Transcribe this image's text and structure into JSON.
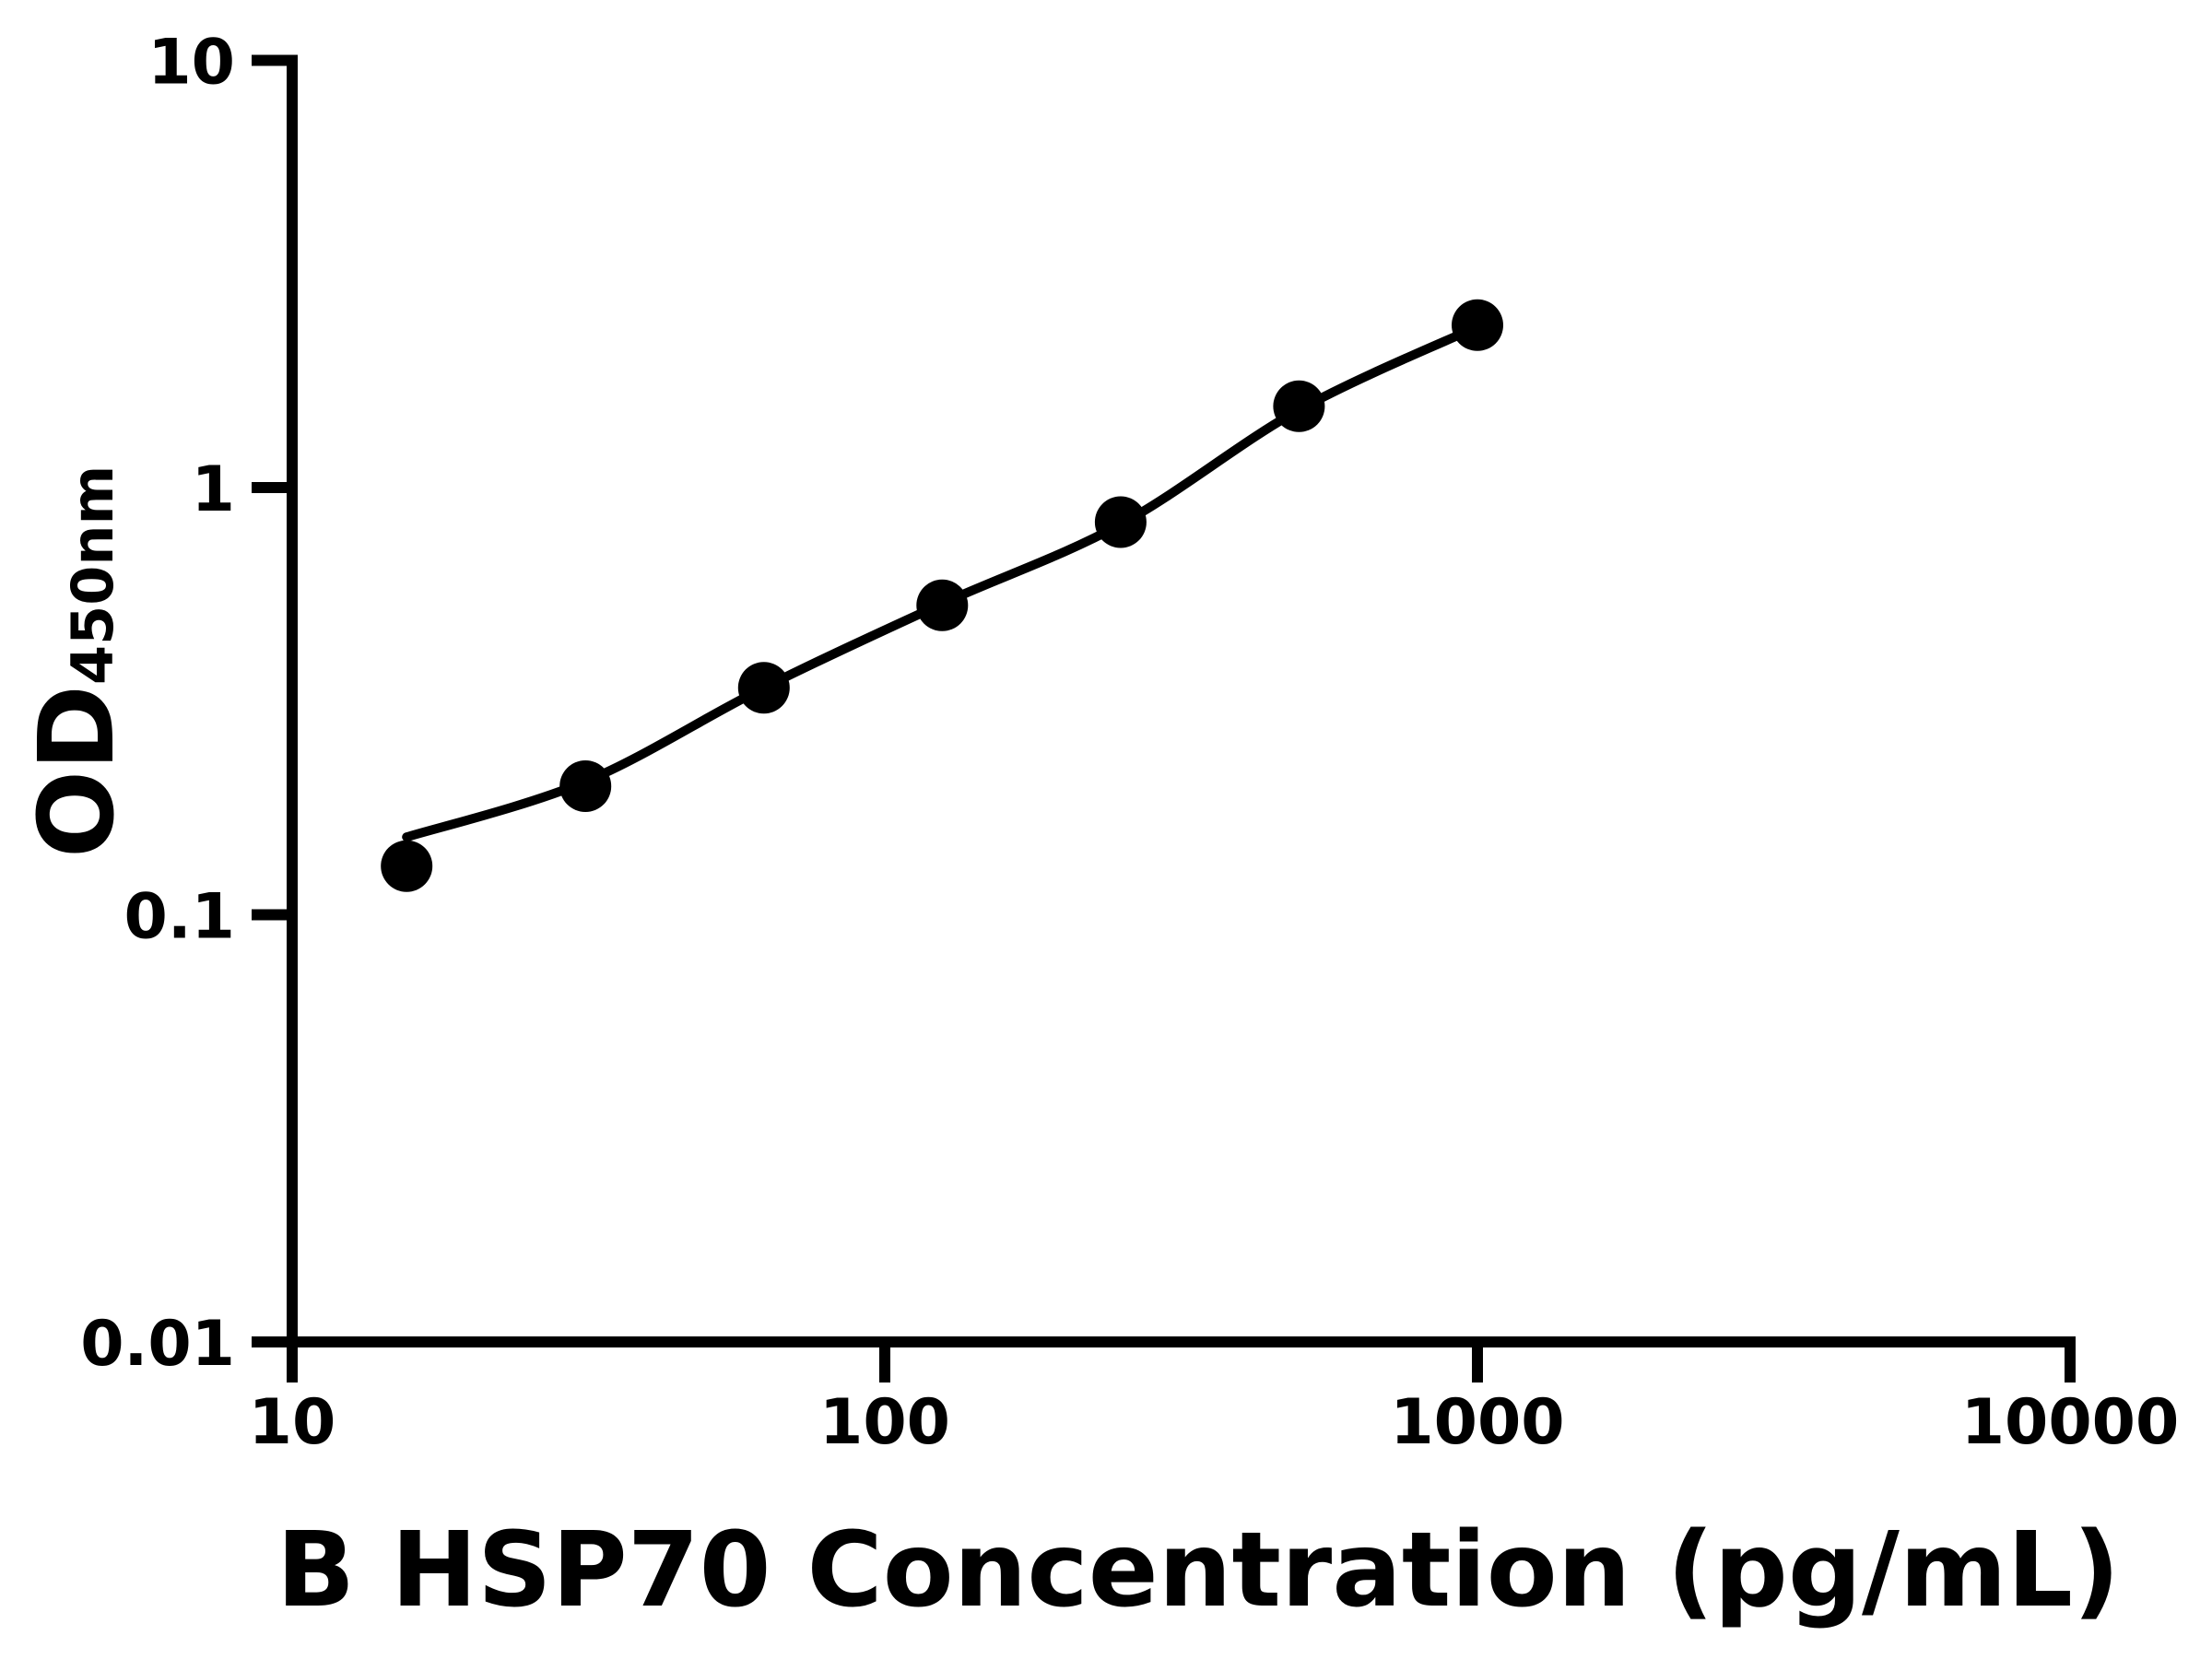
{
  "chart_data": {
    "type": "scatter",
    "title": "",
    "xlabel": "B HSP70 Concentration (pg/mL)",
    "ylabel": "OD450nm",
    "ylabel_parts": {
      "main": "OD",
      "subscript": "450nm"
    },
    "x_scale": "log",
    "y_scale": "log",
    "xlim": [
      10,
      10000
    ],
    "ylim": [
      0.01,
      10
    ],
    "x_ticks": [
      10,
      100,
      1000,
      10000
    ],
    "x_tick_labels": [
      "10",
      "100",
      "1000",
      "10000"
    ],
    "y_ticks": [
      0.01,
      0.1,
      1,
      10
    ],
    "y_tick_labels": [
      "0.01",
      "0.1",
      "1",
      "10"
    ],
    "grid": "off",
    "legend": "none",
    "series": [
      {
        "name": "standard-curve-points",
        "type": "scatter",
        "x": [
          15.6,
          31.25,
          62.5,
          125,
          250,
          500,
          1000
        ],
        "y": [
          0.13,
          0.2,
          0.34,
          0.53,
          0.83,
          1.55,
          2.4
        ]
      },
      {
        "name": "fitted-curve",
        "type": "line",
        "x": [
          15.6,
          31.25,
          62.5,
          125,
          250,
          500,
          1000
        ],
        "y": [
          0.152,
          0.205,
          0.34,
          0.535,
          0.82,
          1.52,
          2.38
        ]
      }
    ],
    "colors": {
      "marker": "#000000",
      "line": "#000000",
      "axis": "#000000",
      "background": "#ffffff"
    }
  }
}
